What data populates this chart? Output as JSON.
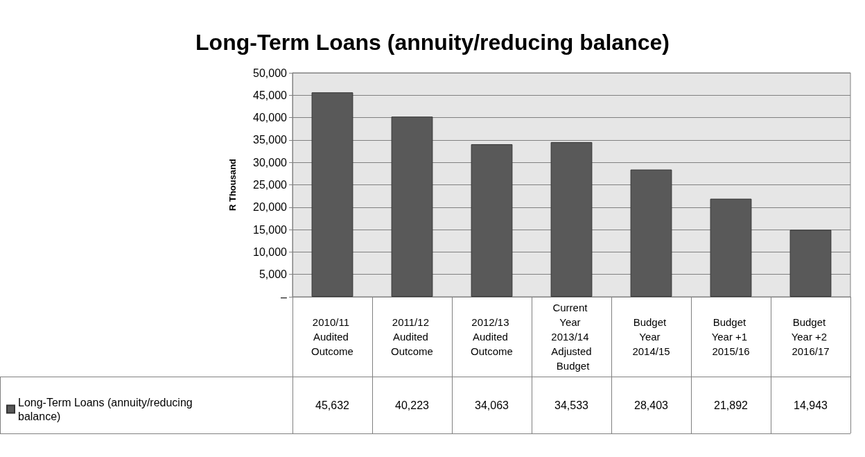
{
  "chart_data": {
    "type": "bar",
    "title": "Long-Term Loans (annuity/reducing balance)",
    "ylabel": "R Thousand",
    "categories": [
      "2010/11 Audited Outcome",
      "2011/12 Audited Outcome",
      "2012/13 Audited Outcome",
      "Current Year 2013/14 Adjusted Budget",
      "Budget Year 2014/15",
      "Budget Year +1 2015/16",
      "Budget Year +2 2016/17"
    ],
    "series": [
      {
        "name": "Long-Term Loans (annuity/reducing balance)",
        "color": "#595959",
        "values": [
          45632,
          40223,
          34063,
          34533,
          28403,
          21892,
          14943
        ]
      }
    ],
    "ylim": [
      0,
      50000
    ],
    "yticks": [
      {
        "value": 0,
        "label": "–"
      },
      {
        "value": 5000,
        "label": "5,000"
      },
      {
        "value": 10000,
        "label": "10,000"
      },
      {
        "value": 15000,
        "label": "15,000"
      },
      {
        "value": 20000,
        "label": "20,000"
      },
      {
        "value": 25000,
        "label": "25,000"
      },
      {
        "value": 30000,
        "label": "30,000"
      },
      {
        "value": 35000,
        "label": "35,000"
      },
      {
        "value": 40000,
        "label": "40,000"
      },
      {
        "value": 45000,
        "label": "45,000"
      },
      {
        "value": 50000,
        "label": "50,000"
      }
    ],
    "value_labels": [
      "45,632",
      "40,223",
      "34,063",
      "34,533",
      "28,403",
      "21,892",
      "14,943"
    ],
    "grid": "y",
    "legend": "bottom left"
  }
}
